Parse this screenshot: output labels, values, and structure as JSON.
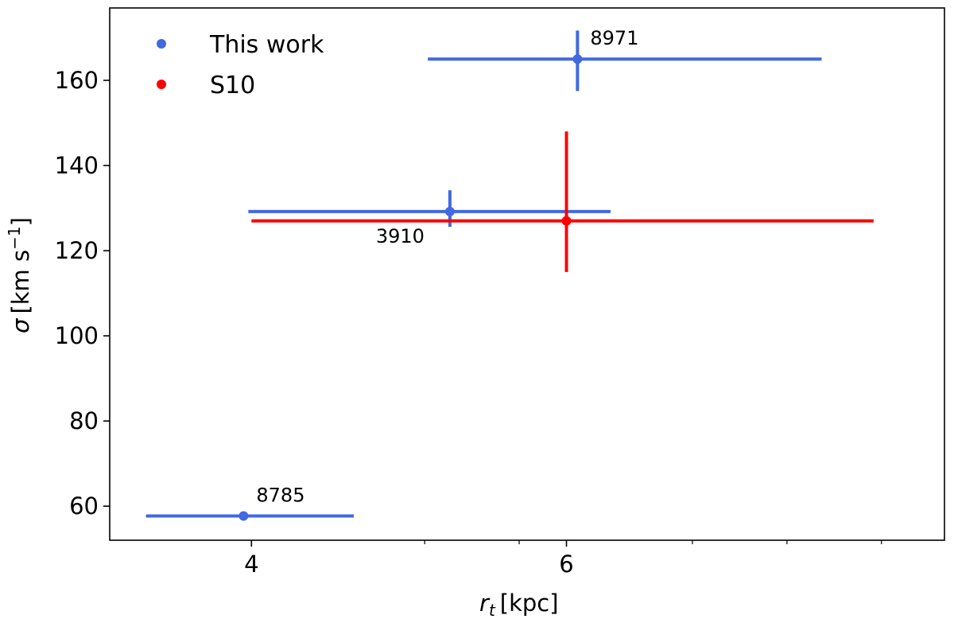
{
  "chart_data": {
    "type": "scatter",
    "xlabel_main": "r",
    "xlabel_sub": "t",
    "xlabel_unit": "[kpc]",
    "ylabel_main": "σ",
    "ylabel_unit": "[km s",
    "ylabel_exp": "−1",
    "ylabel_close": "]",
    "xlim": [
      3.1,
      8.4
    ],
    "ylim": [
      52,
      177
    ],
    "x_ticks": [
      4,
      6
    ],
    "x_tick_labels": [
      "4",
      "6"
    ],
    "x_minor_ticks": [
      5.1,
      5.7,
      6.8,
      7.4,
      8.0
    ],
    "y_ticks": [
      60,
      80,
      100,
      120,
      140,
      160
    ],
    "y_tick_labels": [
      "60",
      "80",
      "100",
      "120",
      "140",
      "160"
    ],
    "grid": false,
    "legend_position": "top-left",
    "series": [
      {
        "name": "This work",
        "color": "#4169e1",
        "points": [
          {
            "x": 3.95,
            "y": 57.7,
            "xerr_low": 0.62,
            "xerr_high": 0.7,
            "yerr_low": 0.0,
            "yerr_high": 0.0,
            "label": "8785",
            "label_pos": "above-right"
          },
          {
            "x": 5.26,
            "y": 129.2,
            "xerr_low": 1.28,
            "xerr_high": 1.02,
            "yerr_low": 3.6,
            "yerr_high": 5.0,
            "label": "3910",
            "label_pos": "below-left"
          },
          {
            "x": 6.07,
            "y": 165.0,
            "xerr_low": 0.95,
            "xerr_high": 1.55,
            "yerr_low": 7.5,
            "yerr_high": 6.7,
            "label": "8971",
            "label_pos": "above-right"
          }
        ]
      },
      {
        "name": "S10",
        "color": "#ff0000",
        "points": [
          {
            "x": 6.0,
            "y": 127.0,
            "xerr_low": 2.0,
            "xerr_high": 1.95,
            "yerr_low": 12.0,
            "yerr_high": 21.0
          }
        ]
      }
    ]
  }
}
